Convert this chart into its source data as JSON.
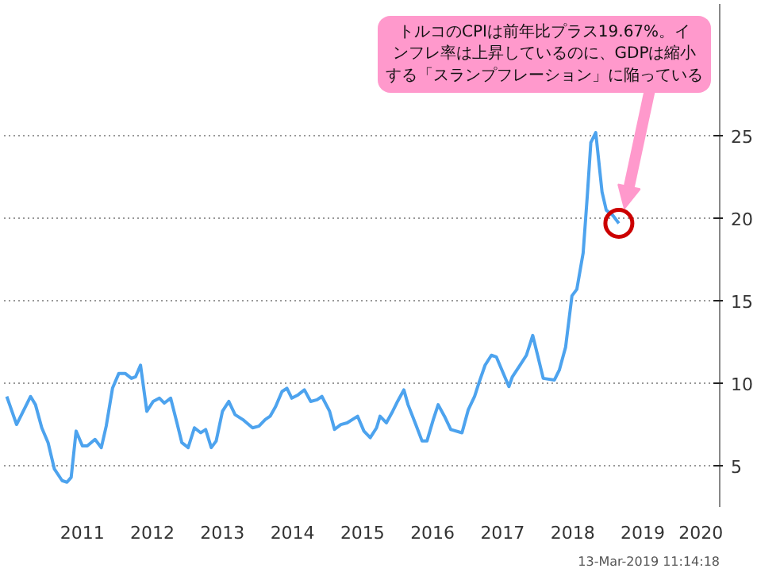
{
  "chart_data": {
    "type": "line",
    "x": [
      2010.42,
      2010.56,
      2010.76,
      2010.83,
      2010.92,
      2011.01,
      2011.1,
      2011.21,
      2011.28,
      2011.34,
      2011.41,
      2011.5,
      2011.57,
      2011.68,
      2011.77,
      2011.84,
      2011.93,
      2012.02,
      2012.11,
      2012.2,
      2012.26,
      2012.33,
      2012.42,
      2012.51,
      2012.6,
      2012.67,
      2012.76,
      2012.85,
      2012.92,
      2013.01,
      2013.1,
      2013.19,
      2013.26,
      2013.34,
      2013.41,
      2013.5,
      2013.59,
      2013.68,
      2013.79,
      2013.93,
      2014.02,
      2014.11,
      2014.18,
      2014.26,
      2014.35,
      2014.42,
      2014.49,
      2014.58,
      2014.67,
      2014.76,
      2014.85,
      2014.92,
      2015.03,
      2015.1,
      2015.19,
      2015.28,
      2015.43,
      2015.52,
      2015.61,
      2015.7,
      2015.75,
      2015.84,
      2015.93,
      2016.0,
      2016.09,
      2016.15,
      2016.26,
      2016.35,
      2016.42,
      2016.51,
      2016.58,
      2016.67,
      2016.76,
      2016.92,
      2017.01,
      2017.1,
      2017.16,
      2017.25,
      2017.34,
      2017.41,
      2017.59,
      2017.64,
      2017.75,
      2017.84,
      2017.93,
      2018.0,
      2018.08,
      2018.24,
      2018.31,
      2018.4,
      2018.49,
      2018.56,
      2018.65,
      2018.71,
      2018.76,
      2018.83,
      2018.92,
      2018.98,
      2019.07,
      2019.16
    ],
    "series": [
      {
        "color": "#4da3ee",
        "values": [
          9.2,
          7.5,
          9.2,
          8.7,
          7.3,
          6.4,
          4.8,
          4.1,
          4.0,
          4.3,
          7.1,
          6.2,
          6.2,
          6.6,
          6.1,
          7.4,
          9.7,
          10.6,
          10.6,
          10.3,
          10.4,
          11.1,
          8.3,
          8.9,
          9.1,
          8.8,
          9.1,
          7.6,
          6.4,
          6.1,
          7.3,
          7.0,
          7.2,
          6.1,
          6.5,
          8.3,
          8.9,
          8.1,
          7.8,
          7.3,
          7.4,
          7.8,
          8.0,
          8.6,
          9.5,
          9.7,
          9.1,
          9.3,
          9.6,
          8.9,
          9.0,
          9.2,
          8.3,
          7.2,
          7.5,
          7.6,
          8.0,
          7.1,
          6.7,
          7.3,
          8.0,
          7.6,
          8.3,
          8.9,
          9.6,
          8.7,
          7.5,
          6.5,
          6.5,
          7.8,
          8.7,
          8.0,
          7.2,
          7.0,
          8.4,
          9.2,
          10.0,
          11.1,
          11.7,
          11.6,
          9.8,
          10.4,
          11.1,
          11.7,
          12.9,
          11.7,
          10.3,
          10.2,
          10.8,
          12.2,
          15.3,
          15.7,
          17.9,
          21.4,
          24.6,
          25.2,
          21.6,
          20.5,
          20.2,
          19.7
        ]
      }
    ],
    "xlim": [
      2010.38,
      2020.6
    ],
    "ylim": [
      2.5,
      33
    ],
    "xticks": [
      {
        "value": 2011.5,
        "label": "2011"
      },
      {
        "value": 2012.5,
        "label": "2012"
      },
      {
        "value": 2013.5,
        "label": "2013"
      },
      {
        "value": 2014.5,
        "label": "2014"
      },
      {
        "value": 2015.5,
        "label": "2015"
      },
      {
        "value": 2016.5,
        "label": "2016"
      },
      {
        "value": 2017.5,
        "label": "2017"
      },
      {
        "value": 2018.5,
        "label": "2018"
      },
      {
        "value": 2019.5,
        "label": "2019"
      },
      {
        "value": 2020.33,
        "label": "2020"
      }
    ],
    "yticks": [
      5,
      10,
      15,
      20,
      25
    ],
    "grid": "y",
    "annotations": [
      "トルコのCPIは前年比プラス19.67%。インフレ率は上昇しているのに、GDPは縮小する「スランプフレーション」に陥っている",
      "13-Mar-2019 11:14:18"
    ]
  }
}
